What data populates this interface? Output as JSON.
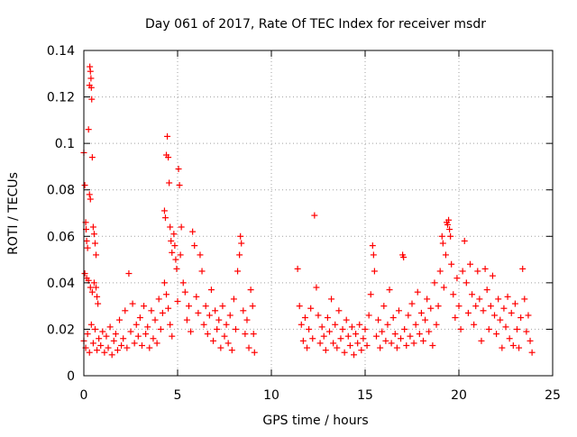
{
  "chart_data": {
    "type": "scatter",
    "title": "Day 061 of 2017, Rate Of TEC Index for receiver msdr",
    "xlabel": "GPS time / hours",
    "ylabel": "ROTI / TECUs",
    "xlim": [
      0,
      25
    ],
    "ylim": [
      0,
      0.14
    ],
    "xticks": [
      0,
      5,
      10,
      15,
      20,
      25
    ],
    "xtick_labels": [
      "0",
      "5",
      "10",
      "15",
      "20",
      "25"
    ],
    "yticks": [
      0,
      0.02,
      0.04,
      0.06,
      0.08,
      0.1,
      0.12,
      0.14
    ],
    "ytick_labels": [
      "0",
      "0.02",
      "0.04",
      "0.06",
      "0.08",
      "0.1",
      "0.12",
      "0.14"
    ],
    "grid": true,
    "marker": "+",
    "color": "#ff0000",
    "series": [
      {
        "name": "ROTI",
        "points": [
          [
            0.0,
            0.096
          ],
          [
            0.05,
            0.082
          ],
          [
            0.1,
            0.066
          ],
          [
            0.12,
            0.063
          ],
          [
            0.15,
            0.058
          ],
          [
            0.2,
            0.055
          ],
          [
            0.25,
            0.106
          ],
          [
            0.3,
            0.125
          ],
          [
            0.32,
            0.133
          ],
          [
            0.35,
            0.131
          ],
          [
            0.38,
            0.128
          ],
          [
            0.4,
            0.124
          ],
          [
            0.42,
            0.119
          ],
          [
            0.45,
            0.094
          ],
          [
            0.3,
            0.078
          ],
          [
            0.35,
            0.076
          ],
          [
            0.5,
            0.064
          ],
          [
            0.55,
            0.061
          ],
          [
            0.6,
            0.057
          ],
          [
            0.65,
            0.052
          ],
          [
            0.05,
            0.044
          ],
          [
            0.15,
            0.042
          ],
          [
            0.25,
            0.041
          ],
          [
            0.35,
            0.038
          ],
          [
            0.45,
            0.036
          ],
          [
            0.55,
            0.04
          ],
          [
            0.65,
            0.038
          ],
          [
            0.7,
            0.034
          ],
          [
            0.75,
            0.031
          ],
          [
            0.0,
            0.015
          ],
          [
            0.1,
            0.012
          ],
          [
            0.2,
            0.018
          ],
          [
            0.3,
            0.01
          ],
          [
            0.4,
            0.022
          ],
          [
            0.5,
            0.014
          ],
          [
            0.6,
            0.02
          ],
          [
            0.7,
            0.011
          ],
          [
            0.8,
            0.016
          ],
          [
            0.9,
            0.013
          ],
          [
            1.0,
            0.019
          ],
          [
            1.1,
            0.01
          ],
          [
            1.2,
            0.017
          ],
          [
            1.3,
            0.012
          ],
          [
            1.4,
            0.021
          ],
          [
            1.5,
            0.009
          ],
          [
            1.6,
            0.015
          ],
          [
            1.7,
            0.018
          ],
          [
            1.8,
            0.011
          ],
          [
            1.9,
            0.024
          ],
          [
            2.0,
            0.013
          ],
          [
            2.1,
            0.016
          ],
          [
            2.2,
            0.028
          ],
          [
            2.3,
            0.012
          ],
          [
            2.4,
            0.044
          ],
          [
            2.5,
            0.019
          ],
          [
            2.6,
            0.031
          ],
          [
            2.7,
            0.014
          ],
          [
            2.8,
            0.022
          ],
          [
            2.9,
            0.017
          ],
          [
            3.0,
            0.025
          ],
          [
            3.1,
            0.013
          ],
          [
            3.2,
            0.03
          ],
          [
            3.3,
            0.018
          ],
          [
            3.4,
            0.021
          ],
          [
            3.5,
            0.012
          ],
          [
            3.6,
            0.028
          ],
          [
            3.7,
            0.016
          ],
          [
            3.8,
            0.024
          ],
          [
            3.9,
            0.014
          ],
          [
            4.0,
            0.033
          ],
          [
            4.1,
            0.02
          ],
          [
            4.2,
            0.027
          ],
          [
            4.3,
            0.071
          ],
          [
            4.35,
            0.068
          ],
          [
            4.4,
            0.095
          ],
          [
            4.45,
            0.103
          ],
          [
            4.5,
            0.094
          ],
          [
            4.55,
            0.083
          ],
          [
            4.6,
            0.064
          ],
          [
            4.65,
            0.058
          ],
          [
            4.7,
            0.053
          ],
          [
            4.3,
            0.04
          ],
          [
            4.4,
            0.035
          ],
          [
            4.5,
            0.029
          ],
          [
            4.6,
            0.022
          ],
          [
            4.7,
            0.017
          ],
          [
            4.8,
            0.061
          ],
          [
            4.85,
            0.056
          ],
          [
            4.9,
            0.05
          ],
          [
            4.95,
            0.046
          ],
          [
            5.0,
            0.032
          ],
          [
            5.05,
            0.089
          ],
          [
            5.1,
            0.082
          ],
          [
            5.15,
            0.052
          ],
          [
            5.2,
            0.064
          ],
          [
            5.3,
            0.04
          ],
          [
            5.4,
            0.036
          ],
          [
            5.5,
            0.024
          ],
          [
            5.6,
            0.03
          ],
          [
            5.7,
            0.019
          ],
          [
            5.8,
            0.062
          ],
          [
            5.9,
            0.056
          ],
          [
            6.0,
            0.034
          ],
          [
            6.1,
            0.027
          ],
          [
            6.2,
            0.052
          ],
          [
            6.3,
            0.045
          ],
          [
            6.4,
            0.022
          ],
          [
            6.5,
            0.03
          ],
          [
            6.6,
            0.018
          ],
          [
            6.7,
            0.026
          ],
          [
            6.8,
            0.037
          ],
          [
            6.9,
            0.015
          ],
          [
            7.0,
            0.028
          ],
          [
            7.1,
            0.02
          ],
          [
            7.2,
            0.024
          ],
          [
            7.3,
            0.012
          ],
          [
            7.4,
            0.03
          ],
          [
            7.5,
            0.017
          ],
          [
            7.6,
            0.022
          ],
          [
            7.7,
            0.014
          ],
          [
            7.8,
            0.026
          ],
          [
            7.9,
            0.011
          ],
          [
            8.0,
            0.033
          ],
          [
            8.1,
            0.02
          ],
          [
            8.2,
            0.045
          ],
          [
            8.3,
            0.052
          ],
          [
            8.35,
            0.06
          ],
          [
            8.4,
            0.057
          ],
          [
            8.5,
            0.028
          ],
          [
            8.6,
            0.018
          ],
          [
            8.7,
            0.024
          ],
          [
            8.8,
            0.012
          ],
          [
            8.9,
            0.037
          ],
          [
            9.0,
            0.03
          ],
          [
            9.05,
            0.018
          ],
          [
            9.1,
            0.01
          ],
          [
            11.4,
            0.046
          ],
          [
            11.5,
            0.03
          ],
          [
            11.6,
            0.022
          ],
          [
            11.7,
            0.015
          ],
          [
            11.8,
            0.025
          ],
          [
            11.9,
            0.012
          ],
          [
            12.0,
            0.02
          ],
          [
            12.1,
            0.029
          ],
          [
            12.2,
            0.016
          ],
          [
            12.3,
            0.069
          ],
          [
            12.4,
            0.038
          ],
          [
            12.5,
            0.026
          ],
          [
            12.6,
            0.014
          ],
          [
            12.7,
            0.021
          ],
          [
            12.8,
            0.017
          ],
          [
            12.9,
            0.011
          ],
          [
            13.0,
            0.025
          ],
          [
            13.1,
            0.019
          ],
          [
            13.2,
            0.033
          ],
          [
            13.3,
            0.014
          ],
          [
            13.4,
            0.022
          ],
          [
            13.5,
            0.012
          ],
          [
            13.6,
            0.028
          ],
          [
            13.7,
            0.016
          ],
          [
            13.8,
            0.02
          ],
          [
            13.9,
            0.01
          ],
          [
            14.0,
            0.024
          ],
          [
            14.1,
            0.017
          ],
          [
            14.2,
            0.013
          ],
          [
            14.3,
            0.021
          ],
          [
            14.4,
            0.009
          ],
          [
            14.5,
            0.018
          ],
          [
            14.6,
            0.014
          ],
          [
            14.7,
            0.022
          ],
          [
            14.8,
            0.011
          ],
          [
            14.9,
            0.016
          ],
          [
            15.0,
            0.02
          ],
          [
            15.1,
            0.013
          ],
          [
            15.2,
            0.026
          ],
          [
            15.3,
            0.035
          ],
          [
            15.4,
            0.056
          ],
          [
            15.45,
            0.052
          ],
          [
            15.5,
            0.045
          ],
          [
            15.6,
            0.017
          ],
          [
            15.7,
            0.024
          ],
          [
            15.8,
            0.012
          ],
          [
            15.9,
            0.019
          ],
          [
            16.0,
            0.03
          ],
          [
            16.1,
            0.015
          ],
          [
            16.2,
            0.022
          ],
          [
            16.3,
            0.037
          ],
          [
            16.4,
            0.014
          ],
          [
            16.5,
            0.025
          ],
          [
            16.6,
            0.018
          ],
          [
            16.7,
            0.012
          ],
          [
            16.8,
            0.028
          ],
          [
            16.9,
            0.016
          ],
          [
            17.0,
            0.052
          ],
          [
            17.05,
            0.051
          ],
          [
            17.1,
            0.02
          ],
          [
            17.2,
            0.013
          ],
          [
            17.3,
            0.026
          ],
          [
            17.4,
            0.017
          ],
          [
            17.5,
            0.031
          ],
          [
            17.6,
            0.014
          ],
          [
            17.7,
            0.022
          ],
          [
            17.8,
            0.036
          ],
          [
            17.9,
            0.018
          ],
          [
            18.0,
            0.027
          ],
          [
            18.1,
            0.015
          ],
          [
            18.2,
            0.024
          ],
          [
            18.3,
            0.033
          ],
          [
            18.4,
            0.019
          ],
          [
            18.5,
            0.029
          ],
          [
            18.6,
            0.013
          ],
          [
            18.7,
            0.04
          ],
          [
            18.8,
            0.022
          ],
          [
            18.9,
            0.03
          ],
          [
            19.0,
            0.045
          ],
          [
            19.1,
            0.06
          ],
          [
            19.15,
            0.057
          ],
          [
            19.2,
            0.038
          ],
          [
            19.3,
            0.052
          ],
          [
            19.35,
            0.066
          ],
          [
            19.4,
            0.065
          ],
          [
            19.45,
            0.067
          ],
          [
            19.5,
            0.063
          ],
          [
            19.55,
            0.06
          ],
          [
            19.6,
            0.048
          ],
          [
            19.7,
            0.035
          ],
          [
            19.8,
            0.025
          ],
          [
            19.9,
            0.042
          ],
          [
            20.0,
            0.03
          ],
          [
            20.1,
            0.02
          ],
          [
            20.2,
            0.045
          ],
          [
            20.3,
            0.058
          ],
          [
            20.4,
            0.04
          ],
          [
            20.5,
            0.027
          ],
          [
            20.6,
            0.048
          ],
          [
            20.7,
            0.035
          ],
          [
            20.8,
            0.022
          ],
          [
            20.9,
            0.03
          ],
          [
            21.0,
            0.045
          ],
          [
            21.1,
            0.033
          ],
          [
            21.2,
            0.015
          ],
          [
            21.3,
            0.028
          ],
          [
            21.4,
            0.046
          ],
          [
            21.5,
            0.037
          ],
          [
            21.6,
            0.02
          ],
          [
            21.7,
            0.03
          ],
          [
            21.8,
            0.043
          ],
          [
            21.9,
            0.026
          ],
          [
            22.0,
            0.018
          ],
          [
            22.1,
            0.033
          ],
          [
            22.2,
            0.024
          ],
          [
            22.3,
            0.012
          ],
          [
            22.4,
            0.029
          ],
          [
            22.5,
            0.021
          ],
          [
            22.6,
            0.034
          ],
          [
            22.7,
            0.016
          ],
          [
            22.8,
            0.027
          ],
          [
            22.9,
            0.013
          ],
          [
            23.0,
            0.031
          ],
          [
            23.1,
            0.02
          ],
          [
            23.2,
            0.012
          ],
          [
            23.3,
            0.025
          ],
          [
            23.4,
            0.046
          ],
          [
            23.5,
            0.033
          ],
          [
            23.6,
            0.019
          ],
          [
            23.7,
            0.026
          ],
          [
            23.8,
            0.015
          ],
          [
            23.9,
            0.01
          ]
        ]
      }
    ]
  }
}
